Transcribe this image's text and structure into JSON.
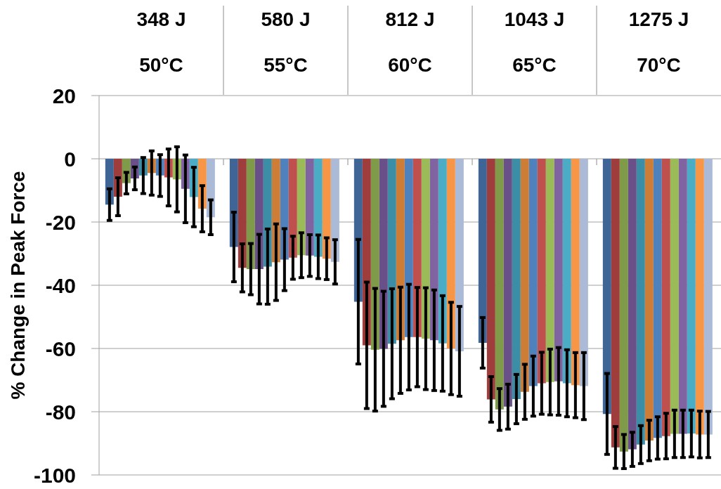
{
  "chart_data": {
    "type": "bar",
    "categories": [
      "348 J\n50°C",
      "580 J\n55°C",
      "812 J\n60°C",
      "1043 J\n65°C",
      "1275 J\n70°C"
    ],
    "ylabel": "% Change in Peak Force",
    "ylim": [
      -100,
      20
    ],
    "yticks": [
      -100,
      -80,
      -60,
      -40,
      -20,
      0,
      20
    ],
    "grid": "y",
    "series": [
      {
        "color": "#3e6595",
        "values": [
          -14.5,
          -27.9,
          -45.2,
          -58.2,
          -80.7
        ],
        "errors": [
          5,
          11,
          19.7,
          8,
          12.8
        ]
      },
      {
        "color": "#9e3d3b",
        "values": [
          -12,
          -34.5,
          -59,
          -76.1,
          -91.3
        ],
        "errors": [
          6,
          7.6,
          20,
          7.2,
          6.6
        ]
      },
      {
        "color": "#7f9a48",
        "values": [
          -7.7,
          -34.9,
          -60.4,
          -79.3,
          -92.6
        ],
        "errors": [
          3.4,
          8.1,
          19.4,
          6.6,
          5.4
        ]
      },
      {
        "color": "#6a5088",
        "values": [
          -6.2,
          -34.9,
          -60.1,
          -78.4,
          -91.9
        ],
        "errors": [
          3.6,
          11,
          18.2,
          7.1,
          5.4
        ]
      },
      {
        "color": "#3b8ea5",
        "values": [
          -5.3,
          -34.1,
          -58.5,
          -76,
          -90.4
        ],
        "errors": [
          5.7,
          11.9,
          17.4,
          7.8,
          6
        ]
      },
      {
        "color": "#cd7d36",
        "values": [
          -4.5,
          -32.7,
          -57.4,
          -73.7,
          -89.1
        ],
        "errors": [
          7,
          12.1,
          16.8,
          8.7,
          6.4
        ]
      },
      {
        "color": "#4f81bd",
        "values": [
          -5.3,
          -31.9,
          -56.4,
          -71.9,
          -88.3
        ],
        "errors": [
          6.6,
          9.8,
          16.7,
          9.5,
          6.7
        ]
      },
      {
        "color": "#c0504d",
        "values": [
          -5.9,
          -31.3,
          -56.4,
          -71,
          -87.7
        ],
        "errors": [
          9,
          6.8,
          15.7,
          9.8,
          7.2
        ]
      },
      {
        "color": "#9bbb59",
        "values": [
          -6.5,
          -30.5,
          -56.9,
          -70.6,
          -87
        ],
        "errors": [
          10.3,
          7.1,
          16.1,
          10.4,
          7.5
        ]
      },
      {
        "color": "#8064a2",
        "values": [
          -9.5,
          -30.6,
          -57.4,
          -70.4,
          -87
        ],
        "errors": [
          10.7,
          6.6,
          15.9,
          10.7,
          7.5
        ]
      },
      {
        "color": "#4bacc6",
        "values": [
          -12.1,
          -31,
          -58.4,
          -71,
          -86.9
        ],
        "errors": [
          9.4,
          6.9,
          15.1,
          10.6,
          7.4
        ]
      },
      {
        "color": "#f79646",
        "values": [
          -15.8,
          -31.6,
          -60,
          -71.6,
          -87.2
        ],
        "errors": [
          7.3,
          6.6,
          14.6,
          10.3,
          7.4
        ]
      },
      {
        "color": "#aabad7",
        "values": [
          -18.5,
          -32.6,
          -60.9,
          -71.9,
          -87.2
        ],
        "errors": [
          5.5,
          7,
          14.2,
          10.6,
          7.3
        ]
      }
    ]
  }
}
